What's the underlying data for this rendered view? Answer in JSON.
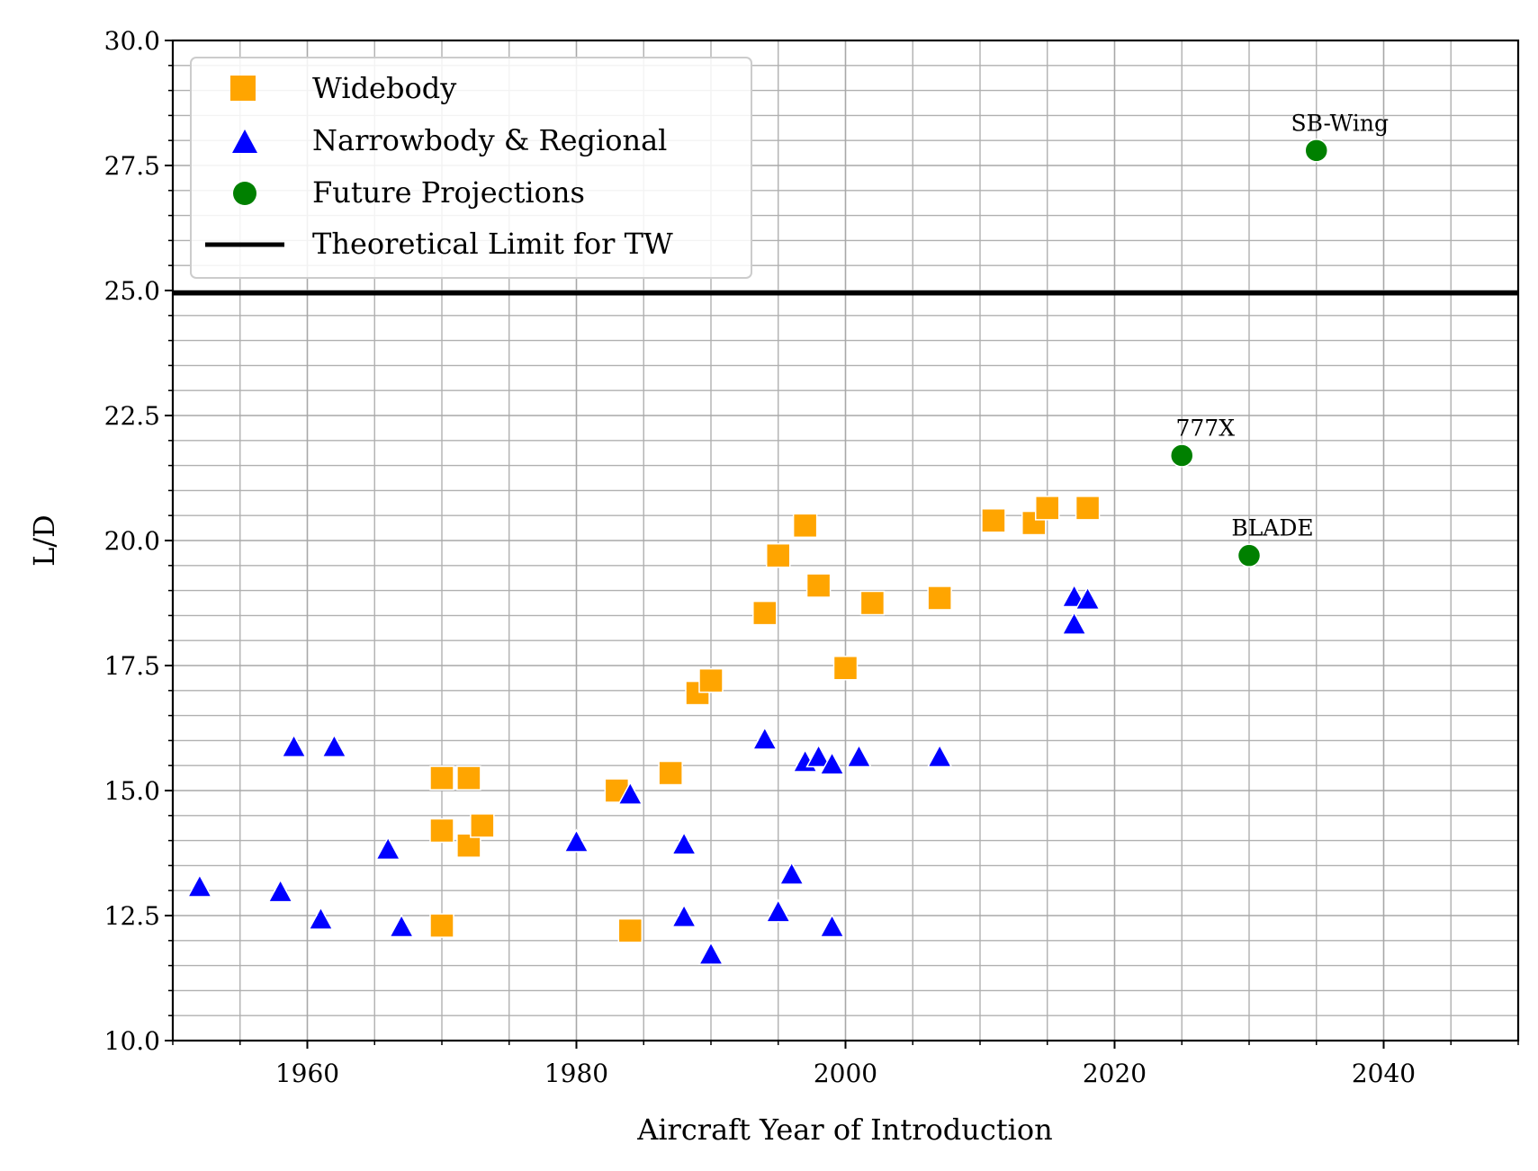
{
  "chart_data": {
    "type": "scatter",
    "xlabel": "Aircraft Year of Introduction",
    "ylabel": "L/D",
    "xlim": [
      1950,
      2050
    ],
    "ylim": [
      10,
      30
    ],
    "x_ticks": [
      1960,
      1980,
      2000,
      2020,
      2040
    ],
    "x_tick_labels": [
      "1960",
      "1980",
      "2000",
      "2020",
      "2040"
    ],
    "y_ticks": [
      10,
      12.5,
      15,
      17.5,
      20,
      22.5,
      25,
      27.5,
      30
    ],
    "y_tick_labels": [
      "10.0",
      "12.5",
      "15.0",
      "17.5",
      "20.0",
      "22.5",
      "25.0",
      "27.5",
      "30.0"
    ],
    "x_minor_step": 5,
    "y_minor_step": 0.5,
    "grid": "major and minor",
    "legend_position": "upper-left",
    "series": [
      {
        "name": "Widebody",
        "marker": "square",
        "color": "#FFA500",
        "points": [
          {
            "x": 1970,
            "y": 15.25
          },
          {
            "x": 1972,
            "y": 15.25
          },
          {
            "x": 1970,
            "y": 14.2
          },
          {
            "x": 1972,
            "y": 13.9
          },
          {
            "x": 1973,
            "y": 14.3
          },
          {
            "x": 1970,
            "y": 12.3
          },
          {
            "x": 1983,
            "y": 15.0
          },
          {
            "x": 1984,
            "y": 12.2
          },
          {
            "x": 1987,
            "y": 15.35
          },
          {
            "x": 1989,
            "y": 16.95
          },
          {
            "x": 1990,
            "y": 17.2
          },
          {
            "x": 1994,
            "y": 18.55
          },
          {
            "x": 1995,
            "y": 19.7
          },
          {
            "x": 1997,
            "y": 20.3
          },
          {
            "x": 1998,
            "y": 19.1
          },
          {
            "x": 2000,
            "y": 17.45
          },
          {
            "x": 2002,
            "y": 18.75
          },
          {
            "x": 2007,
            "y": 18.85
          },
          {
            "x": 2011,
            "y": 20.4
          },
          {
            "x": 2014,
            "y": 20.35
          },
          {
            "x": 2015,
            "y": 20.65
          },
          {
            "x": 2018,
            "y": 20.65
          }
        ]
      },
      {
        "name": "Narrowbody & Regional",
        "marker": "triangle",
        "color": "#0000FF",
        "points": [
          {
            "x": 1952,
            "y": 13.05
          },
          {
            "x": 1958,
            "y": 12.95
          },
          {
            "x": 1959,
            "y": 15.85
          },
          {
            "x": 1961,
            "y": 12.4
          },
          {
            "x": 1962,
            "y": 15.85
          },
          {
            "x": 1966,
            "y": 13.8
          },
          {
            "x": 1967,
            "y": 12.25
          },
          {
            "x": 1980,
            "y": 13.95
          },
          {
            "x": 1984,
            "y": 14.9
          },
          {
            "x": 1988,
            "y": 13.9
          },
          {
            "x": 1988,
            "y": 12.45
          },
          {
            "x": 1990,
            "y": 11.7
          },
          {
            "x": 1994,
            "y": 16.0
          },
          {
            "x": 1995,
            "y": 12.55
          },
          {
            "x": 1996,
            "y": 13.3
          },
          {
            "x": 1997,
            "y": 15.55
          },
          {
            "x": 1998,
            "y": 15.65
          },
          {
            "x": 1999,
            "y": 15.5
          },
          {
            "x": 1999,
            "y": 12.25
          },
          {
            "x": 2001,
            "y": 15.65
          },
          {
            "x": 2007,
            "y": 15.65
          },
          {
            "x": 2017,
            "y": 18.85
          },
          {
            "x": 2017,
            "y": 18.3
          },
          {
            "x": 2018,
            "y": 18.8
          }
        ]
      },
      {
        "name": "Future Projections",
        "marker": "circle",
        "color": "#008000",
        "points": [
          {
            "x": 2035,
            "y": 27.8,
            "label": "SB-Wing"
          },
          {
            "x": 2025,
            "y": 21.7,
            "label": "777X"
          },
          {
            "x": 2030,
            "y": 19.7,
            "label": "BLADE"
          }
        ]
      }
    ],
    "reference_lines": [
      {
        "name": "Theoretical Limit for TW",
        "y": 24.95,
        "color": "#000000"
      }
    ]
  }
}
